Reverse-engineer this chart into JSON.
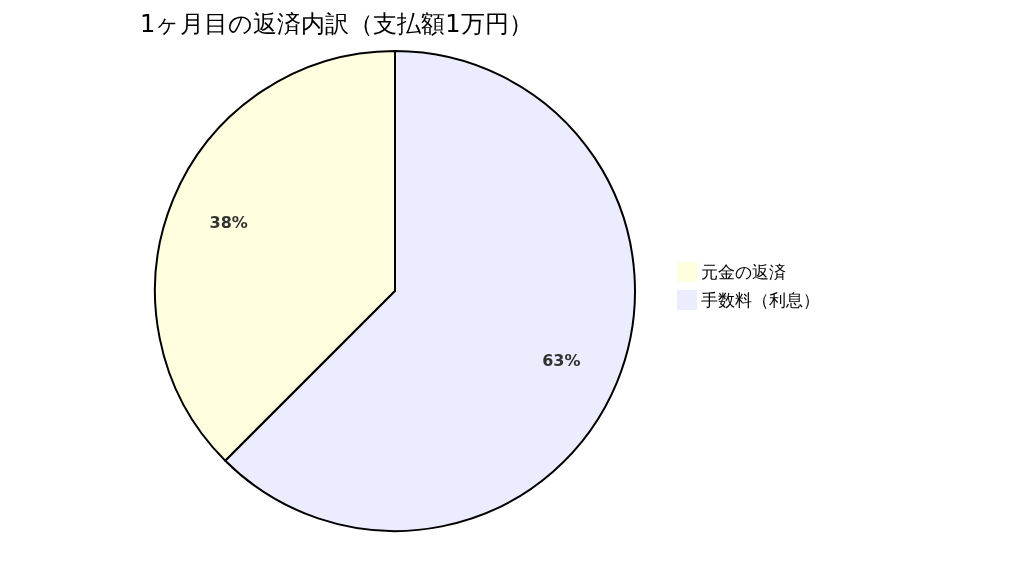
{
  "chart_data": {
    "type": "pie",
    "title": "1ヶ月目の返済内訳（支払額1万円）",
    "categories": [
      "元金の返済",
      "手数料（利息）"
    ],
    "values": [
      37.5,
      62.5
    ],
    "value_labels": [
      "38%",
      "63%"
    ],
    "colors": [
      "#ffffe0",
      "#ececff"
    ],
    "legend": "right"
  }
}
